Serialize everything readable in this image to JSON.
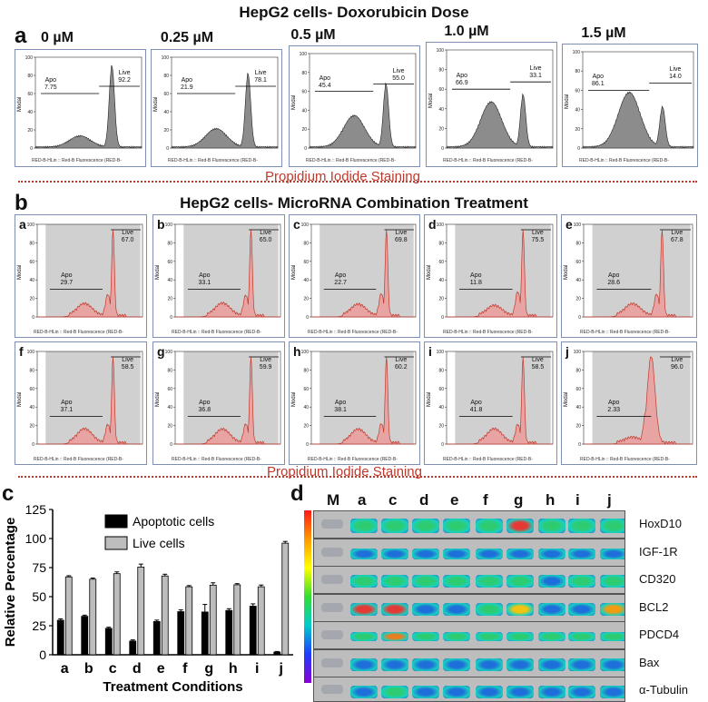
{
  "figure": {
    "panel_a": {
      "label": "a",
      "title": "HepG2 cells- Doxorubicin Dose",
      "y_axis_label": "Modal",
      "x_axis_label": "RED-B-HLin :: Red-B Fluorescence (RED-B-",
      "doses": [
        {
          "dose": "0 µM",
          "apo_label": "Apo",
          "apo_value": "7.75",
          "live_label": "Live",
          "live_value": "92.2"
        },
        {
          "dose": "0.25 µM",
          "apo_label": "Apo",
          "apo_value": "21.9",
          "live_label": "Live",
          "live_value": "78.1"
        },
        {
          "dose": "0.5 µM",
          "apo_label": "Apo",
          "apo_value": "45.4",
          "live_label": "Live",
          "live_value": "55.0"
        },
        {
          "dose": "1.0 µM",
          "apo_label": "Apo",
          "apo_value": "66.9",
          "live_label": "Live",
          "live_value": "33.1"
        },
        {
          "dose": "1.5 µM",
          "apo_label": "Apo",
          "apo_value": "86.1",
          "live_label": "Live",
          "live_value": "14.0"
        }
      ],
      "footer": "Propidium Iodide Staining"
    },
    "panel_b": {
      "label": "b",
      "title": "HepG2 cells- MicroRNA Combination Treatment",
      "y_axis_label": "Modal",
      "x_axis_label": "RED-B-HLin :: Red-B Fluorescence (RED-B-",
      "treatments": [
        {
          "id": "a",
          "apo_value": "29.7",
          "live_value": "67.0"
        },
        {
          "id": "b",
          "apo_value": "33.1",
          "live_value": "65.0"
        },
        {
          "id": "c",
          "apo_value": "22.7",
          "live_value": "69.8"
        },
        {
          "id": "d",
          "apo_value": "11.8",
          "live_value": "75.5"
        },
        {
          "id": "e",
          "apo_value": "28.6",
          "live_value": "67.8"
        },
        {
          "id": "f",
          "apo_value": "37.1",
          "live_value": "58.5"
        },
        {
          "id": "g",
          "apo_value": "36.8",
          "live_value": "59.9"
        },
        {
          "id": "h",
          "apo_value": "38.1",
          "live_value": "60.2"
        },
        {
          "id": "i",
          "apo_value": "41.8",
          "live_value": "58.5"
        },
        {
          "id": "j",
          "apo_value": "2.33",
          "live_value": "96.0"
        }
      ],
      "apo_label": "Apo",
      "live_label": "Live",
      "footer": "Propidium Iodide Staining"
    },
    "panel_c": {
      "label": "c"
    },
    "panel_d": {
      "label": "d",
      "lanes": [
        "M",
        "a",
        "c",
        "d",
        "e",
        "f",
        "g",
        "h",
        "i",
        "j"
      ],
      "proteins": [
        "HoxD10",
        "IGF-1R",
        "CD320",
        "BCL2",
        "PDCD4",
        "Bax",
        "α-Tubulin"
      ],
      "colors": {
        "marker": "#9aa0a8",
        "band_high": "#e53935",
        "band_mid": "#2ecc71",
        "band_low": "#1e6fd9"
      }
    }
  },
  "chart_data": {
    "type": "bar",
    "categories": [
      "a",
      "b",
      "c",
      "d",
      "e",
      "f",
      "g",
      "h",
      "i",
      "j"
    ],
    "series": [
      {
        "name": "Apoptotic cells",
        "color": "#000000",
        "values": [
          29.7,
          33.1,
          22.7,
          11.8,
          28.6,
          37.1,
          36.8,
          38.1,
          41.8,
          2.33
        ],
        "errors": [
          1.2,
          1.0,
          1.0,
          1.0,
          1.2,
          1.5,
          6.5,
          1.5,
          2.0,
          0.5
        ]
      },
      {
        "name": "Live cells",
        "color": "#bdbdbd",
        "values": [
          67.0,
          65.0,
          69.8,
          75.5,
          67.8,
          58.5,
          59.9,
          60.2,
          58.5,
          96.0
        ],
        "errors": [
          1.0,
          1.0,
          1.5,
          2.5,
          1.5,
          1.0,
          2.0,
          1.0,
          1.5,
          1.5
        ]
      }
    ],
    "title": "",
    "xlabel": "Treatment Conditions",
    "ylabel": "Relative Percentage",
    "ylim": [
      0,
      125
    ],
    "yticks": [
      0,
      25,
      50,
      75,
      100,
      125
    ],
    "legend": "top-right"
  }
}
